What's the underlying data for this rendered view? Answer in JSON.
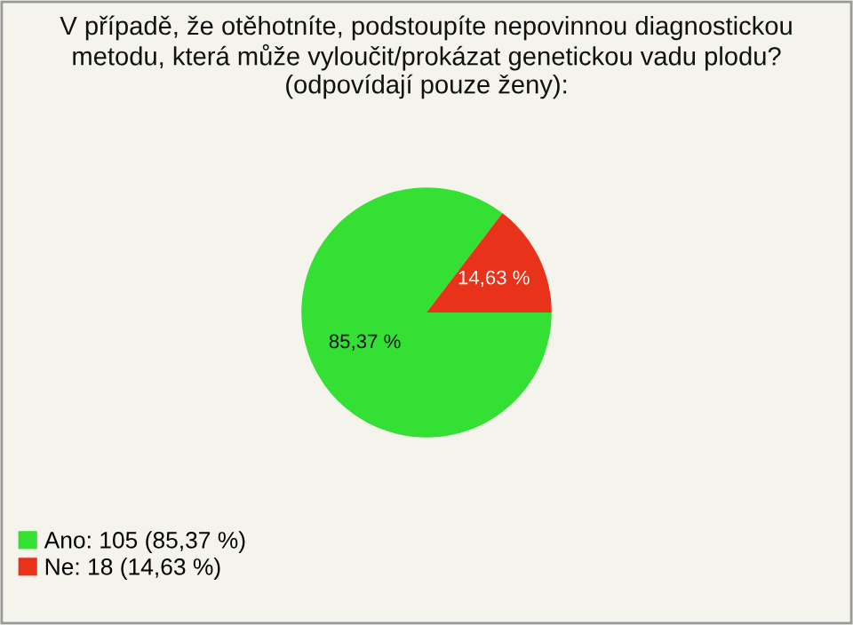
{
  "chart_data": {
    "type": "pie",
    "title": "V případě, že otěhotníte, podstoupíte nepovinnou diagnostickou\nmetodu, která může vyloučit/prokázat genetickou vadu plodu?\n(odpovídají pouze ženy):",
    "categories": [
      "Ano: 105 (85,37 %)",
      "Ne: 18 (14,63 %)"
    ],
    "values": [
      85.37,
      14.63
    ],
    "colors": [
      "#33e033",
      "#e8321a"
    ],
    "value_labels": [
      "85,37 %",
      "14,63 %"
    ],
    "legend": "bottom left"
  }
}
